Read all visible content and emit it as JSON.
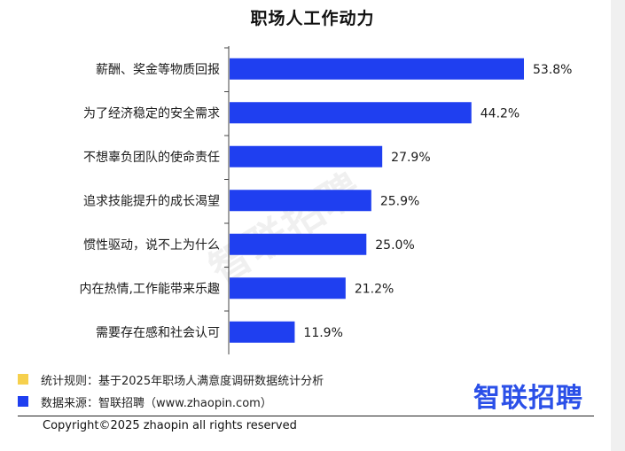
{
  "chart_data": {
    "type": "bar",
    "orientation": "horizontal",
    "title": "职场人工作动力",
    "categories": [
      "薪酬、奖金等物质回报",
      "为了经济稳定的安全需求",
      "不想辜负团队的使命责任",
      "追求技能提升的成长渴望",
      "惯性驱动，说不上为什么",
      "内在热情,工作能带来乐趣",
      "需要存在感和社会认可"
    ],
    "values": [
      53.8,
      44.2,
      27.9,
      25.9,
      25.0,
      21.2,
      11.9
    ],
    "value_labels": [
      "53.8%",
      "44.2%",
      "27.9%",
      "25.9%",
      "25.0%",
      "21.2%",
      "11.9%"
    ],
    "xlim": [
      0,
      53.8
    ],
    "bar_color": "#1f3ff0",
    "grid": false
  },
  "watermark": "智联招聘",
  "legend": [
    {
      "text": "统计规则：基于2025年职场人满意度调研数据统计分析",
      "color": "#f6d04d"
    },
    {
      "text": "数据来源：智联招聘（www.zhaopin.com）",
      "color": "#1f3ff0"
    }
  ],
  "logo": "智联招聘",
  "logo_color": "#2b50e8",
  "copyright": "Copyright©2025 zhaopin all rights reserved"
}
